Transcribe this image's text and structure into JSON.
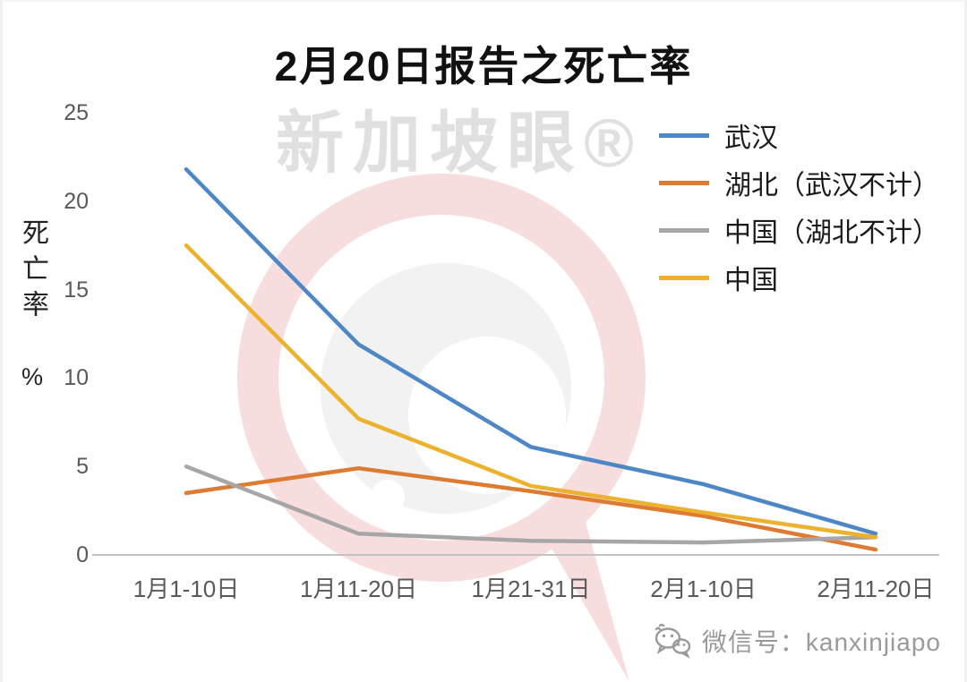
{
  "chart_data": {
    "type": "line",
    "title": "2月20日报告之死亡率",
    "ylabel": "死亡率",
    "y_unit": "%",
    "xlabel": "",
    "ylim": [
      0,
      25
    ],
    "yticks": [
      0,
      5,
      10,
      15,
      20,
      25
    ],
    "grid": false,
    "legend_position": "top-right",
    "categories": [
      "1月1-10日",
      "1月11-20日",
      "1月21-31日",
      "2月1-10日",
      "2月11-20日"
    ],
    "series": [
      {
        "name": "武汉",
        "color": "#4e87c6",
        "values": [
          21.8,
          11.9,
          6.1,
          4.0,
          1.2
        ]
      },
      {
        "name": "湖北（武汉不计）",
        "color": "#dd7b32",
        "values": [
          3.5,
          4.9,
          3.6,
          2.2,
          0.3
        ]
      },
      {
        "name": "中国（湖北不计）",
        "color": "#a6a6a6",
        "values": [
          5.0,
          1.2,
          0.8,
          0.7,
          1.0
        ]
      },
      {
        "name": "中国",
        "color": "#ecb22e",
        "values": [
          17.5,
          7.7,
          3.9,
          2.4,
          1.0
        ]
      }
    ]
  },
  "watermark": {
    "text": "新加坡眼®"
  },
  "footer": {
    "wechat_label": "微信号：kanxinjiapo"
  }
}
